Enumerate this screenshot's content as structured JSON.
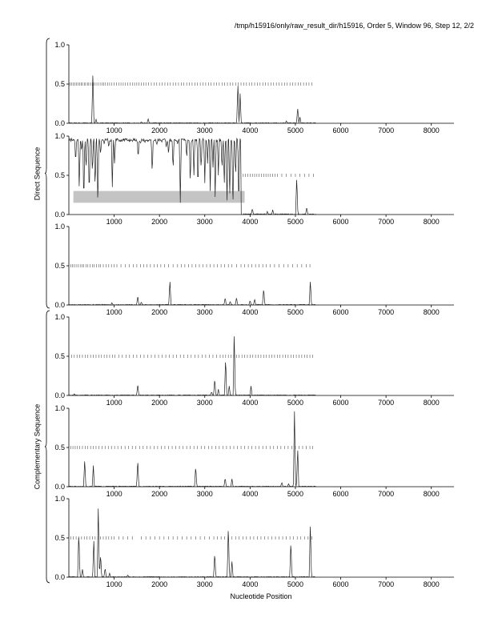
{
  "header": {
    "title": "/tmp/h15916/only/raw_result_dir/h15916, Order 5, Window 96, Step 12, 2/2"
  },
  "xaxis_title": "Nucleotide Position",
  "group_labels": [
    "Direct Sequence",
    "Complementary Sequence"
  ],
  "chart_data": [
    {
      "type": "line",
      "group": "Direct Sequence",
      "frame": 1,
      "xlim": [
        0,
        8500
      ],
      "ylim": [
        0,
        1
      ],
      "xticks": [
        "1000",
        "2000",
        "3000",
        "4000",
        "5000",
        "6000",
        "7000",
        "8000"
      ],
      "yticks": [
        "0.0",
        "0.5",
        "1.0"
      ],
      "marker_ticks": [
        30,
        60,
        95,
        130,
        165,
        200,
        235,
        270,
        300,
        340,
        370,
        410,
        440,
        480,
        520,
        560,
        600,
        640,
        690,
        730,
        770,
        810,
        860,
        900,
        950,
        1000,
        1050,
        1100,
        1150,
        1200,
        1250,
        1300,
        1350,
        1400,
        1450,
        1500,
        1550,
        1600,
        1650,
        1700,
        1760,
        1820,
        1880,
        1940,
        2000,
        2060,
        2120,
        2180,
        2240,
        2300,
        2360,
        2420,
        2480,
        2540,
        2600,
        2660,
        2720,
        2780,
        2840,
        2900,
        2960,
        3020,
        3080,
        3140,
        3200,
        3260,
        3320,
        3380,
        3440,
        3500,
        3560,
        3620,
        3680,
        3740,
        3800,
        3860,
        3920,
        3980,
        4040,
        4100,
        4160,
        4220,
        4280,
        4340,
        4400,
        4460,
        4520,
        4580,
        4640,
        4700,
        4760,
        4820,
        4880,
        4940,
        5000,
        5060,
        5120,
        5180,
        5240,
        5300,
        5360
      ],
      "peaks": [
        {
          "x": 530,
          "y": 0.66
        },
        {
          "x": 600,
          "y": 0.05
        },
        {
          "x": 1600,
          "y": 0.02
        },
        {
          "x": 1750,
          "y": 0.06
        },
        {
          "x": 3730,
          "y": 0.52
        },
        {
          "x": 3780,
          "y": 0.38
        },
        {
          "x": 4800,
          "y": 0.03
        },
        {
          "x": 5050,
          "y": 0.2
        },
        {
          "x": 5100,
          "y": 0.08
        }
      ]
    },
    {
      "type": "line",
      "group": "Direct Sequence",
      "frame": 2,
      "xlim": [
        0,
        8500
      ],
      "ylim": [
        0,
        1
      ],
      "xticks": [
        "1000",
        "2000",
        "3000",
        "4000",
        "5000",
        "6000",
        "7000",
        "8000"
      ],
      "yticks": [
        "0.0",
        "0.5",
        "1.0"
      ],
      "highlight": {
        "x0": 100,
        "x1": 3880,
        "y0": 0.15,
        "y1": 0.3
      },
      "marker_ticks": [
        3850,
        3900,
        3950,
        4000,
        4050,
        4100,
        4150,
        4200,
        4250,
        4300,
        4350,
        4400,
        4450,
        4500,
        4550,
        4600,
        4700,
        4800,
        4900,
        5000,
        5100,
        5200,
        5300,
        5400
      ],
      "dips": [
        {
          "x": 150,
          "y": 0.65
        },
        {
          "x": 230,
          "y": 0.3
        },
        {
          "x": 280,
          "y": 0.8
        },
        {
          "x": 330,
          "y": 0.1
        },
        {
          "x": 380,
          "y": 0.55
        },
        {
          "x": 450,
          "y": 0.2
        },
        {
          "x": 520,
          "y": 0.5
        },
        {
          "x": 580,
          "y": 0.3
        },
        {
          "x": 640,
          "y": 0.05
        },
        {
          "x": 700,
          "y": 0.75
        },
        {
          "x": 780,
          "y": 0.9
        },
        {
          "x": 880,
          "y": 0.85
        },
        {
          "x": 960,
          "y": 0.35
        },
        {
          "x": 1010,
          "y": 0.62
        },
        {
          "x": 1100,
          "y": 0.95
        },
        {
          "x": 1300,
          "y": 0.95
        },
        {
          "x": 1530,
          "y": 0.7
        },
        {
          "x": 1580,
          "y": 0.9
        },
        {
          "x": 1680,
          "y": 0.92
        },
        {
          "x": 1840,
          "y": 0.5
        },
        {
          "x": 1940,
          "y": 0.88
        },
        {
          "x": 2050,
          "y": 0.92
        },
        {
          "x": 2150,
          "y": 0.85
        },
        {
          "x": 2200,
          "y": 0.75
        },
        {
          "x": 2300,
          "y": 0.55
        },
        {
          "x": 2400,
          "y": 0.9
        },
        {
          "x": 2460,
          "y": 0.15
        },
        {
          "x": 2600,
          "y": 0.7
        },
        {
          "x": 2680,
          "y": 0.35
        },
        {
          "x": 2760,
          "y": 0.5
        },
        {
          "x": 2850,
          "y": 0.3
        },
        {
          "x": 2920,
          "y": 0.55
        },
        {
          "x": 3000,
          "y": 0.4
        },
        {
          "x": 3060,
          "y": 0.65
        },
        {
          "x": 3120,
          "y": 0.3
        },
        {
          "x": 3180,
          "y": 0.6
        },
        {
          "x": 3230,
          "y": 0.15
        },
        {
          "x": 3300,
          "y": 0.5
        },
        {
          "x": 3380,
          "y": 0.55
        },
        {
          "x": 3430,
          "y": 0.35
        },
        {
          "x": 3490,
          "y": 0.1
        },
        {
          "x": 3550,
          "y": 0.2
        },
        {
          "x": 3620,
          "y": 0.02
        },
        {
          "x": 3680,
          "y": 0.45
        },
        {
          "x": 3750,
          "y": 0.05
        }
      ],
      "peaks": [
        {
          "x": 4050,
          "y": 0.08
        },
        {
          "x": 4380,
          "y": 0.04
        },
        {
          "x": 4500,
          "y": 0.06
        },
        {
          "x": 5030,
          "y": 0.48
        },
        {
          "x": 5250,
          "y": 0.1
        }
      ]
    },
    {
      "type": "line",
      "group": "Direct Sequence",
      "frame": 3,
      "xlim": [
        0,
        8500
      ],
      "ylim": [
        0,
        1
      ],
      "xticks": [
        "1000",
        "2000",
        "3000",
        "4000",
        "5000",
        "6000",
        "7000",
        "8000"
      ],
      "yticks": [
        "0.0",
        "0.5",
        "1.0"
      ],
      "marker_ticks": [
        40,
        80,
        120,
        160,
        200,
        250,
        290,
        330,
        380,
        420,
        470,
        520,
        560,
        610,
        660,
        700,
        760,
        820,
        880,
        940,
        1000,
        1060,
        1150,
        1250,
        1330,
        1420,
        1500,
        1580,
        1650,
        1720,
        1800,
        1880,
        1950,
        2030,
        2110,
        2200,
        2300,
        2400,
        2480,
        2560,
        2640,
        2720,
        2800,
        2880,
        2960,
        3040,
        3120,
        3200,
        3280,
        3360,
        3440,
        3520,
        3600,
        3700,
        3800,
        3880,
        3960,
        4040,
        4120,
        4200,
        4280,
        4360,
        4440,
        4540,
        4640,
        4740,
        4840,
        4940,
        5040,
        5140,
        5240,
        5320
      ],
      "peaks": [
        {
          "x": 950,
          "y": 0.03
        },
        {
          "x": 1520,
          "y": 0.12
        },
        {
          "x": 1600,
          "y": 0.04
        },
        {
          "x": 2230,
          "y": 0.32
        },
        {
          "x": 3450,
          "y": 0.1
        },
        {
          "x": 3560,
          "y": 0.05
        },
        {
          "x": 3700,
          "y": 0.1
        },
        {
          "x": 4000,
          "y": 0.06
        },
        {
          "x": 4100,
          "y": 0.08
        },
        {
          "x": 4300,
          "y": 0.22
        },
        {
          "x": 5330,
          "y": 0.32
        }
      ]
    },
    {
      "type": "line",
      "group": "Complementary Sequence",
      "frame": 1,
      "xlim": [
        0,
        8500
      ],
      "ylim": [
        0,
        1
      ],
      "xticks": [
        "1000",
        "2000",
        "3000",
        "4000",
        "5000",
        "6000",
        "7000",
        "8000"
      ],
      "yticks": [
        "0.0",
        "0.5",
        "1.0"
      ],
      "marker_ticks": [
        60,
        120,
        180,
        240,
        300,
        360,
        420,
        480,
        540,
        600,
        660,
        720,
        780,
        840,
        900,
        960,
        1020,
        1100,
        1180,
        1260,
        1340,
        1420,
        1500,
        1580,
        1660,
        1740,
        1820,
        1900,
        1980,
        2060,
        2140,
        2220,
        2300,
        2380,
        2460,
        2540,
        2620,
        2700,
        2780,
        2860,
        2940,
        3020,
        3100,
        3180,
        3260,
        3340,
        3400,
        3460,
        3520,
        3580,
        3640,
        3700,
        3760,
        3820,
        3880,
        3940,
        4000,
        4060,
        4120,
        4180,
        4240,
        4300,
        4360,
        4420,
        4480,
        4540,
        4600,
        4660,
        4720,
        4780,
        4840,
        4900,
        4960,
        5020,
        5080,
        5140,
        5200,
        5260,
        5320,
        5380
      ],
      "peaks": [
        {
          "x": 120,
          "y": 0.02
        },
        {
          "x": 1520,
          "y": 0.15
        },
        {
          "x": 3150,
          "y": 0.05
        },
        {
          "x": 3220,
          "y": 0.22
        },
        {
          "x": 3300,
          "y": 0.08
        },
        {
          "x": 3460,
          "y": 0.5
        },
        {
          "x": 3540,
          "y": 0.12
        },
        {
          "x": 3650,
          "y": 0.82
        },
        {
          "x": 4020,
          "y": 0.12
        }
      ]
    },
    {
      "type": "line",
      "group": "Complementary Sequence",
      "frame": 2,
      "xlim": [
        0,
        8500
      ],
      "ylim": [
        0,
        1
      ],
      "xticks": [
        "1000",
        "2000",
        "3000",
        "4000",
        "5000",
        "6000",
        "7000",
        "8000"
      ],
      "yticks": [
        "0.0",
        "0.5",
        "1.0"
      ],
      "marker_ticks": [
        40,
        90,
        140,
        190,
        240,
        300,
        360,
        420,
        480,
        540,
        600,
        660,
        730,
        800,
        870,
        940,
        1010,
        1080,
        1160,
        1240,
        1320,
        1400,
        1480,
        1560,
        1640,
        1720,
        1800,
        1880,
        1960,
        2040,
        2120,
        2200,
        2280,
        2360,
        2440,
        2520,
        2600,
        2680,
        2760,
        2840,
        2920,
        3000,
        3080,
        3160,
        3240,
        3320,
        3400,
        3480,
        3560,
        3640,
        3720,
        3800,
        3880,
        3960,
        4040,
        4120,
        4200,
        4280,
        4360,
        4440,
        4520,
        4600,
        4680,
        4760,
        4840,
        4920,
        5000,
        5080,
        5160,
        5240,
        5320,
        5380
      ],
      "peaks": [
        {
          "x": 350,
          "y": 0.35
        },
        {
          "x": 540,
          "y": 0.27
        },
        {
          "x": 1520,
          "y": 0.36
        },
        {
          "x": 2800,
          "y": 0.27
        },
        {
          "x": 3450,
          "y": 0.12
        },
        {
          "x": 3600,
          "y": 0.1
        },
        {
          "x": 4700,
          "y": 0.06
        },
        {
          "x": 4850,
          "y": 0.04
        },
        {
          "x": 4980,
          "y": 0.96
        },
        {
          "x": 5050,
          "y": 0.5
        }
      ]
    },
    {
      "type": "line",
      "group": "Complementary Sequence",
      "frame": 3,
      "xlim": [
        0,
        8500
      ],
      "ylim": [
        0,
        1
      ],
      "xticks": [
        "1000",
        "2000",
        "3000",
        "4000",
        "5000",
        "6000",
        "7000",
        "8000"
      ],
      "yticks": [
        "0.0",
        "0.5",
        "1.0"
      ],
      "marker_ticks": [
        40,
        100,
        160,
        220,
        280,
        340,
        400,
        460,
        520,
        580,
        640,
        700,
        760,
        820,
        880,
        940,
        1000,
        1100,
        1200,
        1300,
        1400,
        1600,
        1700,
        1800,
        1900,
        2000,
        2100,
        2200,
        2300,
        2400,
        2500,
        2600,
        2700,
        2800,
        2900,
        3000,
        3100,
        3200,
        3280,
        3360,
        3440,
        3520,
        3600,
        3680,
        3760,
        3840,
        3920,
        4000,
        4080,
        4160,
        4240,
        4320,
        4400,
        4480,
        4560,
        4640,
        4720,
        4800,
        4880,
        4960,
        5040,
        5120,
        5200,
        5280,
        5360
      ],
      "peaks": [
        {
          "x": 220,
          "y": 0.6
        },
        {
          "x": 300,
          "y": 0.1
        },
        {
          "x": 550,
          "y": 0.5
        },
        {
          "x": 650,
          "y": 0.95
        },
        {
          "x": 700,
          "y": 0.3
        },
        {
          "x": 800,
          "y": 0.12
        },
        {
          "x": 900,
          "y": 0.05
        },
        {
          "x": 1300,
          "y": 0.03
        },
        {
          "x": 3220,
          "y": 0.32
        },
        {
          "x": 3520,
          "y": 0.7
        },
        {
          "x": 3600,
          "y": 0.2
        },
        {
          "x": 4900,
          "y": 0.48
        },
        {
          "x": 5330,
          "y": 0.7
        }
      ]
    }
  ]
}
